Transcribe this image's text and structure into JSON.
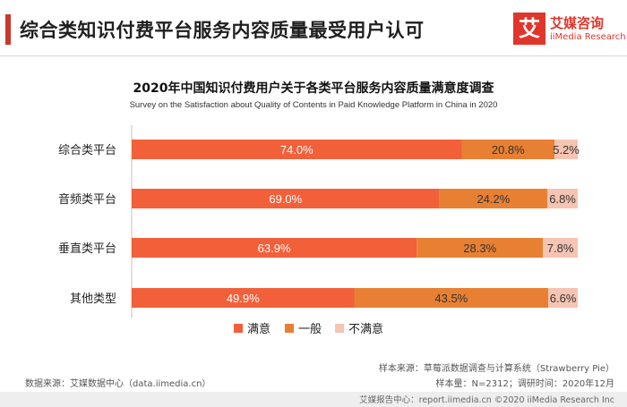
{
  "header": {
    "title": "综合类知识付费平台服务内容质量最受用户认可",
    "logo_mark": "艾",
    "logo_cn": "艾媒咨询",
    "logo_en": "iiMedia Research"
  },
  "chart_data": {
    "type": "bar",
    "orientation": "horizontal",
    "stacked": true,
    "percent": true,
    "title": "2020年中国知识付费用户关于各类平台服务内容质量满意度调查",
    "subtitle": "Survey on the Satisfaction about Quality of Contents in Paid Knowledge Platform in China in 2020",
    "categories": [
      "综合类平台",
      "音频类平台",
      "垂直类平台",
      "其他类型"
    ],
    "series": [
      {
        "name": "满意",
        "values": [
          74.0,
          69.0,
          63.9,
          49.9
        ],
        "color": "#f2603a",
        "label_color": "#ffffff"
      },
      {
        "name": "一般",
        "values": [
          20.8,
          24.2,
          28.3,
          43.5
        ],
        "color": "#e88033",
        "label_color": "#333333"
      },
      {
        "name": "不满意",
        "values": [
          5.2,
          6.8,
          7.8,
          6.6
        ],
        "color": "#f6c4b2",
        "label_color": "#333333"
      }
    ],
    "xlim": [
      0,
      100
    ],
    "grid": false,
    "legend_position": "bottom"
  },
  "footer": {
    "source": "数据来源：艾媒数据中心（data.iimedia.cn）",
    "sample_source": "样本来源：草莓派数据调查与计算系统（Strawberry Pie）",
    "sample_size": "样本量：N=2312；调研时间：2020年12月",
    "report_center": "艾媒报告中心：report.iimedia.cn ©2020 iiMedia Research Inc"
  }
}
